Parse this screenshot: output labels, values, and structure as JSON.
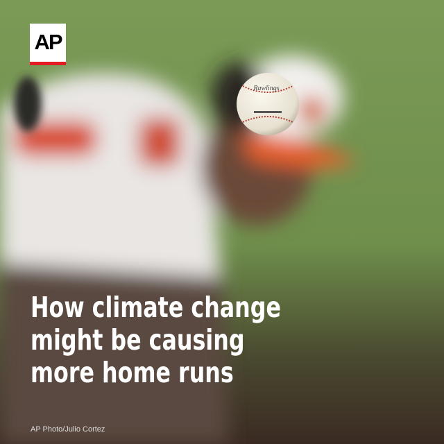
{
  "logo": {
    "text": "AP"
  },
  "headline": {
    "lines": [
      "How climate change",
      "might be causing",
      "more home runs"
    ]
  },
  "ball": {
    "brand": "Rawlings"
  },
  "credit": "AP Photo/Julio Cortez"
}
